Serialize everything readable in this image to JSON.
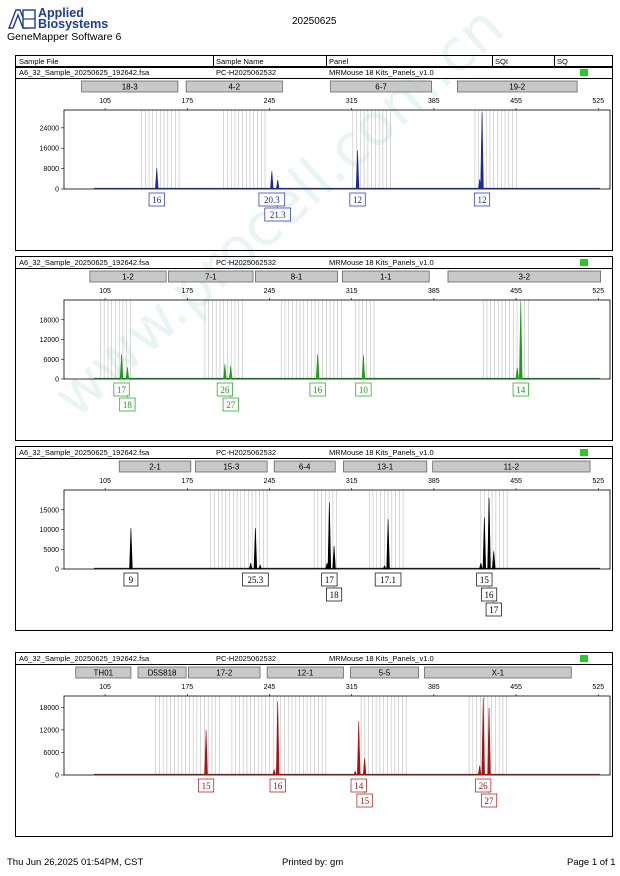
{
  "header": {
    "brand_line1": "Applied",
    "brand_line2": "Biosystems",
    "software": "GeneMapper Software 6",
    "date": "20250625",
    "columns": [
      "Sample File",
      "Sample Name",
      "Panel",
      "SQI",
      "SQ"
    ]
  },
  "footer": {
    "timestamp": "Thu Jun 26,2025 01:54PM, CST",
    "printed_by": "Printed by: gm",
    "page": "Page 1 of 1"
  },
  "watermark": "www.procell.com.cn",
  "colors": {
    "blue": "#1a2a9e",
    "green": "#1f9a1f",
    "black": "#000000",
    "red": "#a31515",
    "quality": "#22cc22"
  },
  "chart_data": [
    {
      "type": "line",
      "sample_file": "A6_32_Sample_20250625_192642.fsa",
      "sample_name": "PC-H2025062532",
      "panel": "MRMouse 18 Kits_Panels_v1.0",
      "color": "blue",
      "xlim": [
        70,
        535
      ],
      "x_ticks": [
        105,
        175,
        245,
        315,
        385,
        455,
        525
      ],
      "ylim": [
        0,
        31000
      ],
      "y_ticks": [
        0,
        8000,
        16000,
        24000
      ],
      "markers": [
        {
          "label": "18-3",
          "start": 85,
          "end": 167
        },
        {
          "label": "4-2",
          "start": 174,
          "end": 256
        },
        {
          "label": "6-7",
          "start": 297,
          "end": 383
        },
        {
          "label": "19-2",
          "start": 405,
          "end": 507
        }
      ],
      "bins": [
        [
          136,
          168
        ],
        [
          206,
          244
        ],
        [
          316,
          350
        ],
        [
          420,
          458
        ]
      ],
      "peaks": [
        {
          "x": 149,
          "y": 8200
        },
        {
          "x": 247,
          "y": 7000
        },
        {
          "x": 252,
          "y": 3600
        },
        {
          "x": 320,
          "y": 15200
        },
        {
          "x": 426,
          "y": 30000
        },
        {
          "x": 424,
          "y": 3800
        }
      ],
      "labels": [
        {
          "x": 149,
          "text": "16",
          "row": 0
        },
        {
          "x": 247,
          "text": "20.3",
          "row": 0
        },
        {
          "x": 252,
          "text": "21.3",
          "row": 1
        },
        {
          "x": 320,
          "text": "12",
          "row": 0
        },
        {
          "x": 426,
          "text": "12",
          "row": 0
        }
      ]
    },
    {
      "type": "line",
      "sample_file": "A6_32_Sample_20250625_192642.fsa",
      "sample_name": "PC-H2025062532",
      "panel": "MRMouse 18 Kits_Panels_v1.0",
      "color": "green",
      "xlim": [
        70,
        535
      ],
      "x_ticks": [
        105,
        175,
        245,
        315,
        385,
        455,
        525
      ],
      "ylim": [
        0,
        24000
      ],
      "y_ticks": [
        0,
        6000,
        12000,
        18000
      ],
      "markers": [
        {
          "label": "1-2",
          "start": 92,
          "end": 157
        },
        {
          "label": "7-1",
          "start": 159,
          "end": 231
        },
        {
          "label": "8-1",
          "start": 233,
          "end": 303
        },
        {
          "label": "1-1",
          "start": 307,
          "end": 381
        },
        {
          "label": "3-2",
          "start": 397,
          "end": 527
        }
      ],
      "bins": [
        [
          101,
          129
        ],
        [
          190,
          224
        ],
        [
          255,
          308
        ],
        [
          318,
          334
        ],
        [
          427,
          466
        ]
      ],
      "peaks": [
        {
          "x": 119,
          "y": 7500
        },
        {
          "x": 124,
          "y": 3600
        },
        {
          "x": 207,
          "y": 4500
        },
        {
          "x": 212,
          "y": 4000
        },
        {
          "x": 286,
          "y": 7500
        },
        {
          "x": 325,
          "y": 7200
        },
        {
          "x": 459,
          "y": 23500
        },
        {
          "x": 456,
          "y": 3500
        }
      ],
      "labels": [
        {
          "x": 119,
          "text": "17",
          "row": 0
        },
        {
          "x": 124,
          "text": "18",
          "row": 1
        },
        {
          "x": 207,
          "text": "26",
          "row": 0
        },
        {
          "x": 212,
          "text": "27",
          "row": 1
        },
        {
          "x": 286,
          "text": "16",
          "row": 0
        },
        {
          "x": 325,
          "text": "10",
          "row": 0
        },
        {
          "x": 459,
          "text": "14",
          "row": 0
        }
      ]
    },
    {
      "type": "line",
      "sample_file": "A6_32_Sample_20250625_192642.fsa",
      "sample_name": "PC-H2025062532",
      "panel": "MRMouse 18 Kits_Panels_v1.0",
      "color": "black",
      "xlim": [
        70,
        535
      ],
      "x_ticks": [
        105,
        175,
        245,
        315,
        385,
        455,
        525
      ],
      "ylim": [
        0,
        20000
      ],
      "y_ticks": [
        0,
        5000,
        10000,
        15000
      ],
      "markers": [
        {
          "label": "2-1",
          "start": 117,
          "end": 178
        },
        {
          "label": "15-3",
          "start": 182,
          "end": 243
        },
        {
          "label": "6-4",
          "start": 249,
          "end": 301
        },
        {
          "label": "13-1",
          "start": 308,
          "end": 379
        },
        {
          "label": "11-2",
          "start": 384,
          "end": 518
        }
      ],
      "bins": [
        [
          195,
          246
        ],
        [
          283,
          305
        ],
        [
          330,
          360
        ],
        [
          425,
          448
        ]
      ],
      "peaks": [
        {
          "x": 127,
          "y": 10300
        },
        {
          "x": 229,
          "y": 1500
        },
        {
          "x": 233,
          "y": 10300
        },
        {
          "x": 237,
          "y": 1000
        },
        {
          "x": 296,
          "y": 16900
        },
        {
          "x": 300,
          "y": 5800
        },
        {
          "x": 294,
          "y": 1500
        },
        {
          "x": 346,
          "y": 12600
        },
        {
          "x": 343,
          "y": 800
        },
        {
          "x": 428,
          "y": 13000
        },
        {
          "x": 432,
          "y": 18000
        },
        {
          "x": 436,
          "y": 4500
        },
        {
          "x": 425,
          "y": 1500
        }
      ],
      "labels": [
        {
          "x": 127,
          "text": "9",
          "row": 0
        },
        {
          "x": 233,
          "text": "25.3",
          "row": 0
        },
        {
          "x": 296,
          "text": "17",
          "row": 0
        },
        {
          "x": 300,
          "text": "18",
          "row": 1
        },
        {
          "x": 346,
          "text": "17.1",
          "row": 0
        },
        {
          "x": 428,
          "text": "15",
          "row": 0
        },
        {
          "x": 432,
          "text": "16",
          "row": 1
        },
        {
          "x": 436,
          "text": "17",
          "row": 2
        }
      ]
    },
    {
      "type": "line",
      "sample_file": "A6_32_Sample_20250625_192642.fsa",
      "sample_name": "PC-H2025062532",
      "panel": "MRMouse 18 Kits_Panels_v1.0",
      "color": "red",
      "xlim": [
        70,
        535
      ],
      "x_ticks": [
        105,
        175,
        245,
        315,
        385,
        455,
        525
      ],
      "ylim": [
        0,
        21000
      ],
      "y_ticks": [
        0,
        6000,
        12000,
        18000
      ],
      "markers": [
        {
          "label": "TH01",
          "start": 80,
          "end": 127
        },
        {
          "label": "D5S818",
          "start": 133,
          "end": 174
        },
        {
          "label": "17-2",
          "start": 176,
          "end": 237
        },
        {
          "label": "12-1",
          "start": 243,
          "end": 308
        },
        {
          "label": "5-5",
          "start": 314,
          "end": 372
        },
        {
          "label": "X-1",
          "start": 377,
          "end": 502
        }
      ],
      "bins": [
        [
          148,
          203
        ],
        [
          213,
          293
        ],
        [
          323,
          363
        ],
        [
          415,
          448
        ]
      ],
      "peaks": [
        {
          "x": 191,
          "y": 12000
        },
        {
          "x": 252,
          "y": 19500
        },
        {
          "x": 249,
          "y": 1400
        },
        {
          "x": 321,
          "y": 14300
        },
        {
          "x": 326,
          "y": 4400
        },
        {
          "x": 318,
          "y": 1000
        },
        {
          "x": 427,
          "y": 20500
        },
        {
          "x": 432,
          "y": 17800
        },
        {
          "x": 424,
          "y": 2500
        }
      ],
      "labels": [
        {
          "x": 191,
          "text": "15",
          "row": 0
        },
        {
          "x": 252,
          "text": "16",
          "row": 0
        },
        {
          "x": 321,
          "text": "14",
          "row": 0
        },
        {
          "x": 326,
          "text": "15",
          "row": 1
        },
        {
          "x": 427,
          "text": "26",
          "row": 0
        },
        {
          "x": 432,
          "text": "27",
          "row": 1
        }
      ]
    }
  ]
}
